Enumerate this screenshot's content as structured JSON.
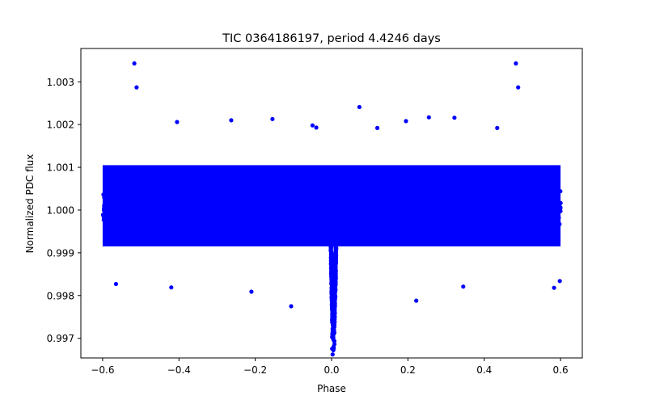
{
  "chart_data": {
    "type": "scatter",
    "title": "TIC 0364186197, period 4.4246 days",
    "xlabel": "Phase",
    "ylabel": "Normalized PDC flux",
    "xlim": [
      -0.657,
      0.657
    ],
    "ylim": [
      0.99654,
      1.00378
    ],
    "xticks": [
      -0.6,
      -0.4,
      -0.2,
      0.0,
      0.2,
      0.4,
      0.6
    ],
    "xtick_labels": [
      "−0.6",
      "−0.4",
      "−0.2",
      "0.0",
      "0.2",
      "0.4",
      "0.6"
    ],
    "yticks": [
      0.997,
      0.998,
      0.999,
      1.0,
      1.001,
      1.002,
      1.003
    ],
    "ytick_labels": [
      "0.997",
      "0.998",
      "0.999",
      "1.000",
      "1.001",
      "1.002",
      "1.003"
    ],
    "grid": false,
    "legend": null,
    "marker_color": "#0000ff",
    "series": [
      {
        "name": "phase-folded light curve",
        "description": "Dense band of points spanning phase -0.6 to 0.6, core flux ~0.9991-1.0011, scatter ~0.9982-1.0021; transit dip centered at phase ~0.005 down to ~0.9966",
        "band": {
          "x_range": [
            -0.6,
            0.6
          ],
          "core_y": [
            0.99915,
            1.00105
          ],
          "outer_y": [
            0.9986,
            1.0015
          ]
        },
        "transit": {
          "center_phase": 0.005,
          "half_width": 0.008,
          "min_flux": 0.9966
        },
        "outliers": [
          {
            "x": -0.517,
            "y": 1.00343
          },
          {
            "x": -0.511,
            "y": 1.00287
          },
          {
            "x": 0.483,
            "y": 1.00343
          },
          {
            "x": 0.489,
            "y": 1.00287
          },
          {
            "x": 0.073,
            "y": 1.00241
          },
          {
            "x": -0.405,
            "y": 1.00206
          },
          {
            "x": -0.155,
            "y": 1.00213
          },
          {
            "x": 0.255,
            "y": 1.00217
          },
          {
            "x": 0.322,
            "y": 1.00216
          },
          {
            "x": -0.263,
            "y": 1.0021
          },
          {
            "x": 0.195,
            "y": 1.00208
          },
          {
            "x": -0.05,
            "y": 1.00198
          },
          {
            "x": -0.04,
            "y": 1.00193
          },
          {
            "x": 0.12,
            "y": 1.00192
          },
          {
            "x": 0.434,
            "y": 1.00192
          },
          {
            "x": -0.106,
            "y": 0.99775
          },
          {
            "x": 0.222,
            "y": 0.99788
          },
          {
            "x": -0.21,
            "y": 0.99809
          },
          {
            "x": -0.42,
            "y": 0.99819
          },
          {
            "x": 0.583,
            "y": 0.99818
          },
          {
            "x": 0.345,
            "y": 0.99821
          },
          {
            "x": -0.565,
            "y": 0.99827
          },
          {
            "x": 0.598,
            "y": 0.99834
          }
        ]
      }
    ]
  }
}
